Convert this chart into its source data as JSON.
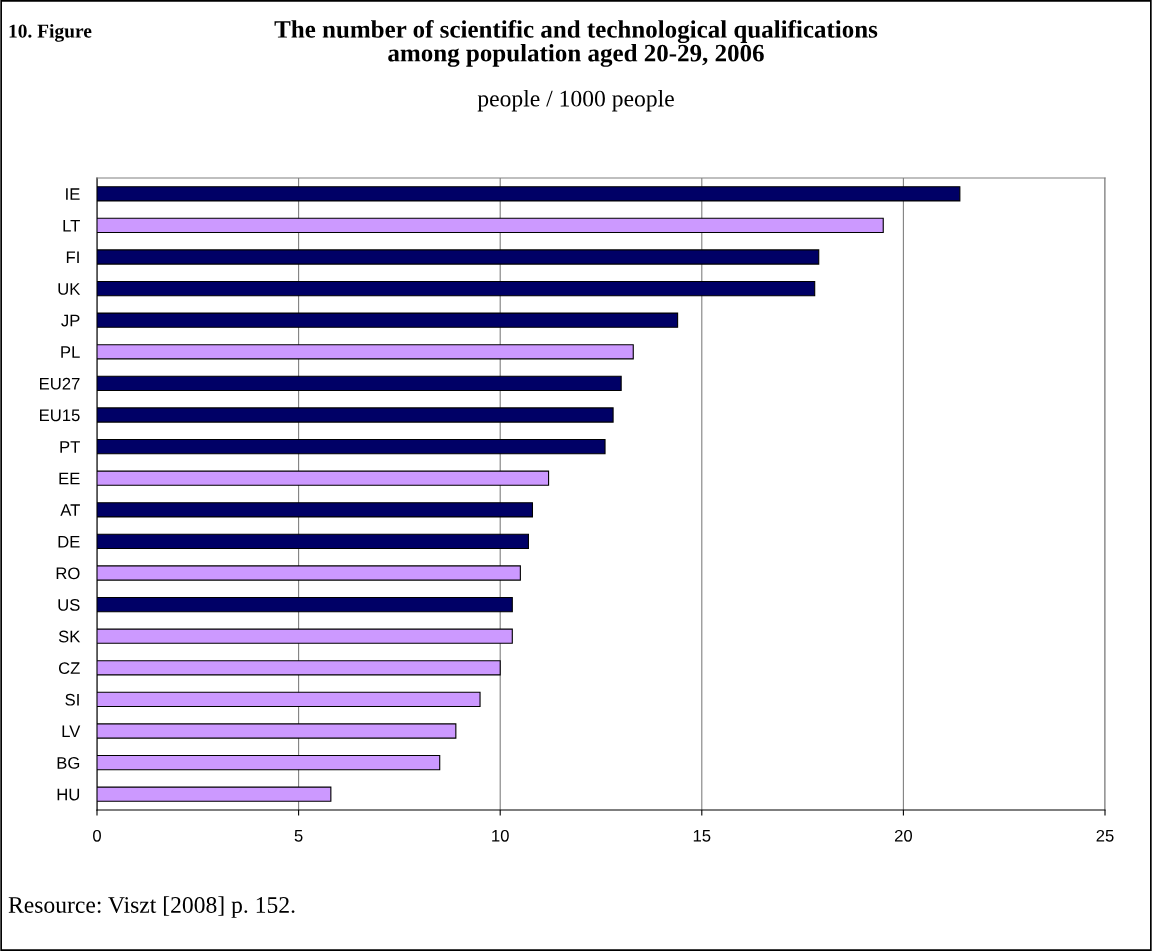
{
  "chart_data": {
    "type": "bar",
    "orientation": "horizontal",
    "title": "The number of scientific and technological qualifications\namong population aged 20-29, 2006",
    "subtitle": "people / 1000 people",
    "annotations": [
      "10. Figure",
      "Resource: Viszt [2008] p. 152."
    ],
    "categories": [
      "IE",
      "LT",
      "FI",
      "UK",
      "JP",
      "PL",
      "EU27",
      "EU15",
      "PT",
      "EE",
      "AT",
      "DE",
      "RO",
      "US",
      "SK",
      "CZ",
      "SI",
      "LV",
      "BG",
      "HU"
    ],
    "values": [
      21.4,
      19.5,
      17.9,
      17.8,
      14.4,
      13.3,
      13.0,
      12.8,
      12.6,
      11.2,
      10.8,
      10.7,
      10.5,
      10.3,
      10.3,
      10.0,
      9.5,
      8.9,
      8.5,
      5.8
    ],
    "colors": [
      "#000066",
      "#cc99ff",
      "#000066",
      "#000066",
      "#000066",
      "#cc99ff",
      "#000066",
      "#000066",
      "#000066",
      "#cc99ff",
      "#000066",
      "#000066",
      "#cc99ff",
      "#000066",
      "#cc99ff",
      "#cc99ff",
      "#cc99ff",
      "#cc99ff",
      "#cc99ff",
      "#cc99ff"
    ],
    "xlim": [
      0,
      25
    ],
    "xticks": [
      0,
      5,
      10,
      15,
      20,
      25
    ],
    "grid": "x",
    "legend": false
  }
}
